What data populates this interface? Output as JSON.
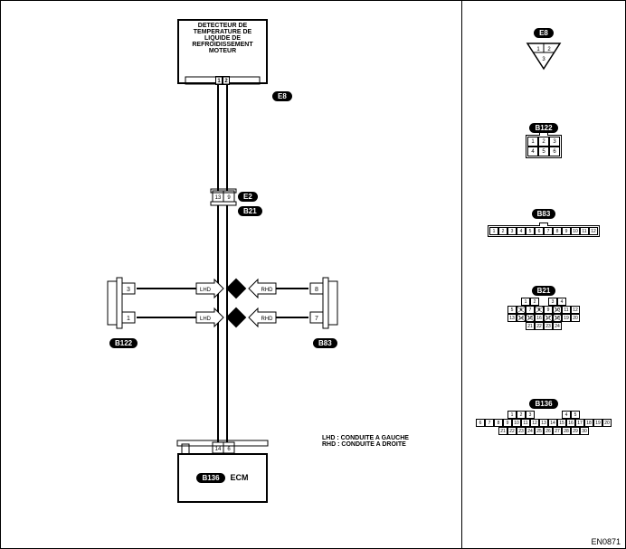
{
  "diagram": {
    "top_component": {
      "label": "E8",
      "title_lines": [
        "DETECTEUR DE",
        "TEMPERATURE DE",
        "LIQUIDE DE",
        "REFROIDISSEMENT",
        "MOTEUR"
      ],
      "pins": [
        "1",
        "2"
      ]
    },
    "mid_junction": {
      "label_top": "E2",
      "label_bottom": "B21",
      "pins_top": [
        "13",
        "9"
      ],
      "pins_bottom": []
    },
    "left_branch": {
      "label": "B122",
      "pins": [
        "3",
        "1"
      ]
    },
    "right_branch": {
      "label": "B83",
      "pins": [
        "8",
        "7"
      ]
    },
    "bottom_component": {
      "label": "B136",
      "name": "ECM",
      "pins": [
        "14",
        "6"
      ]
    },
    "lhd_rhd": {
      "lhd": "LHD",
      "rhd": "RHD"
    },
    "legend": {
      "lhd": "LHD : CONDUITE A GAUCHE",
      "rhd": "RHD : CONDUITE A DROITE"
    },
    "figure_code": "EN0871"
  },
  "connectors": {
    "E8": {
      "label": "E8",
      "shape": "triangle",
      "pins": [
        "1",
        "2",
        "3"
      ]
    },
    "B122": {
      "label": "B122",
      "rows": [
        [
          "1",
          "2",
          "3"
        ],
        [
          "4",
          "5",
          "6"
        ]
      ]
    },
    "B83": {
      "label": "B83",
      "rows": [
        [
          "1",
          "2",
          "3",
          "4",
          "5",
          "6",
          "7",
          "8",
          "9",
          "10",
          "11",
          "12"
        ]
      ]
    },
    "B21": {
      "label": "B21",
      "rows": [
        [
          null,
          "1",
          "2",
          null,
          "3",
          "4",
          null
        ],
        [
          "5",
          "6",
          "7",
          "8",
          "9",
          "10",
          "11",
          "12"
        ],
        [
          "13",
          "14",
          "15",
          "16",
          "17",
          "18",
          "19",
          "20"
        ],
        [
          null,
          "21",
          "22",
          "23",
          "24",
          null
        ]
      ],
      "crossed": [
        "6",
        "8",
        "10",
        "14",
        "15",
        "17",
        "18"
      ]
    },
    "B136": {
      "label": "B136",
      "rows": [
        [
          null,
          "1",
          "2",
          "3",
          null,
          null,
          null,
          "4",
          "5",
          null
        ],
        [
          "6",
          "7",
          "8",
          "9",
          "10",
          "11",
          "12",
          "13",
          "14",
          "15",
          "16",
          "17",
          "18",
          "19",
          "20"
        ],
        [
          "21",
          "22",
          "23",
          "24",
          "25",
          "26",
          "27",
          "28",
          "29",
          "30"
        ]
      ]
    }
  },
  "style": {
    "line_color": "#000000",
    "label_bg": "#000000",
    "label_fg": "#ffffff"
  }
}
